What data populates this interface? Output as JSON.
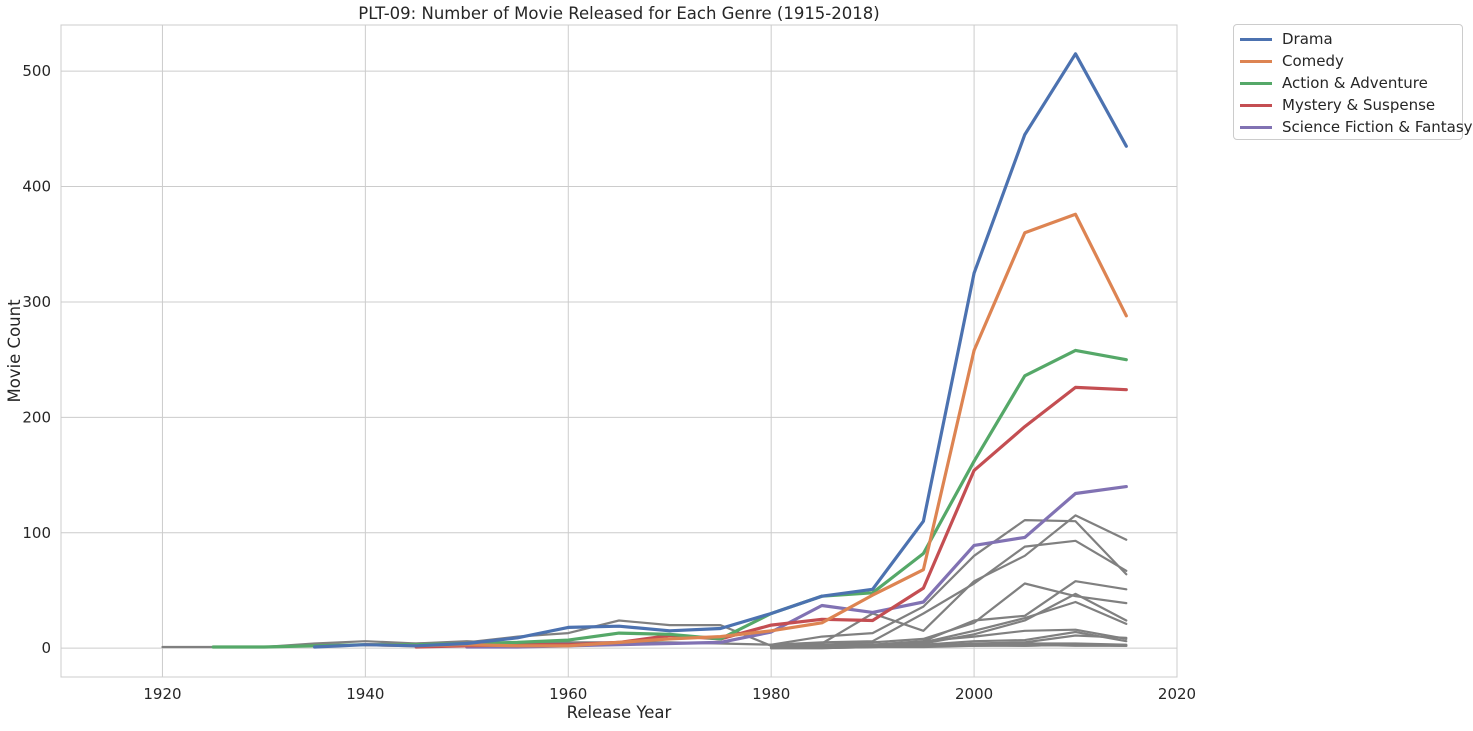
{
  "chart_data": {
    "type": "line",
    "title": "PLT-09: Number of Movie Released for Each Genre (1915-2018)",
    "xlabel": "Release Year",
    "ylabel": "Movie Count",
    "xlim": [
      1910,
      2020
    ],
    "ylim": [
      -25,
      540
    ],
    "xticks": [
      1920,
      1940,
      1960,
      1980,
      2000,
      2020
    ],
    "yticks": [
      0,
      100,
      200,
      300,
      400,
      500
    ],
    "grid": true,
    "legend_position": "outside-top-right",
    "x": [
      1920,
      1925,
      1930,
      1935,
      1940,
      1945,
      1950,
      1955,
      1960,
      1965,
      1970,
      1975,
      1980,
      1985,
      1990,
      1995,
      2000,
      2005,
      2010,
      2015
    ],
    "series": [
      {
        "name": "Drama",
        "color": "#4c72b0",
        "x": [
          1935,
          1940,
          1945,
          1950,
          1955,
          1960,
          1965,
          1970,
          1975,
          1980,
          1985,
          1990,
          1995,
          2000,
          2005,
          2010,
          2015
        ],
        "values": [
          1,
          3,
          2,
          4,
          9,
          18,
          19,
          15,
          17,
          30,
          45,
          51,
          110,
          325,
          445,
          515,
          435
        ]
      },
      {
        "name": "Comedy",
        "color": "#dd8452",
        "x": [
          1940,
          1945,
          1950,
          1955,
          1960,
          1965,
          1970,
          1975,
          1980,
          1985,
          1990,
          1995,
          2000,
          2005,
          2010,
          2015
        ],
        "values": [
          3,
          2,
          3,
          2,
          2,
          5,
          8,
          10,
          15,
          22,
          46,
          68,
          258,
          360,
          376,
          288
        ]
      },
      {
        "name": "Action & Adventure",
        "color": "#55a868",
        "x": [
          1925,
          1930,
          1935,
          1940,
          1945,
          1950,
          1955,
          1960,
          1965,
          1970,
          1975,
          1980,
          1985,
          1990,
          1995,
          2000,
          2005,
          2010,
          2015
        ],
        "values": [
          1,
          1,
          2,
          3,
          3,
          4,
          5,
          7,
          13,
          12,
          8,
          30,
          45,
          48,
          82,
          162,
          236,
          258,
          250
        ]
      },
      {
        "name": "Mystery & Suspense",
        "color": "#c44e52",
        "x": [
          1945,
          1950,
          1955,
          1960,
          1965,
          1970,
          1975,
          1980,
          1985,
          1990,
          1995,
          2000,
          2005,
          2010,
          2015
        ],
        "values": [
          1,
          2,
          3,
          3,
          5,
          11,
          8,
          20,
          25,
          24,
          52,
          154,
          192,
          226,
          224
        ]
      },
      {
        "name": "Science Fiction & Fantasy",
        "color": "#8172b3",
        "x": [
          1950,
          1955,
          1960,
          1965,
          1970,
          1975,
          1980,
          1985,
          1990,
          1995,
          2000,
          2005,
          2010,
          2015
        ],
        "values": [
          1,
          1,
          2,
          3,
          4,
          5,
          14,
          37,
          31,
          40,
          89,
          96,
          134,
          140
        ]
      }
    ],
    "other_series": [
      {
        "color": "#808080",
        "x": [
          1920,
          1925,
          1930,
          1935,
          1940,
          1945,
          1950,
          1955,
          1960,
          1965,
          1970,
          1975,
          1980,
          1985,
          1990,
          1995,
          2000,
          2005,
          2010,
          2015
        ],
        "values": [
          1,
          1,
          1,
          4,
          6,
          4,
          5,
          10,
          13,
          24,
          20,
          20,
          2,
          3,
          2,
          2,
          3,
          2,
          3,
          2
        ]
      },
      {
        "color": "#808080",
        "x": [
          1930,
          1935,
          1940,
          1945,
          1950,
          1955,
          1960,
          1965,
          1970,
          1975,
          1980,
          1985,
          1990,
          1995,
          2000,
          2005,
          2010,
          2015
        ],
        "values": [
          1,
          3,
          3,
          4,
          6,
          4,
          5,
          5,
          5,
          4,
          3,
          3,
          3,
          2,
          2,
          3,
          2,
          2
        ]
      },
      {
        "color": "#808080",
        "x": [
          1980,
          1985,
          1990,
          1995,
          2000,
          2005,
          2010,
          2015
        ],
        "values": [
          3,
          10,
          13,
          36,
          80,
          111,
          110,
          64
        ]
      },
      {
        "color": "#808080",
        "x": [
          1980,
          1985,
          1990,
          1995,
          2000,
          2005,
          2010,
          2015
        ],
        "values": [
          3,
          5,
          6,
          30,
          56,
          88,
          93,
          67
        ]
      },
      {
        "color": "#808080",
        "x": [
          1980,
          1985,
          1990,
          1995,
          2000,
          2005,
          2010,
          2015
        ],
        "values": [
          2,
          4,
          30,
          15,
          58,
          80,
          115,
          94
        ]
      },
      {
        "color": "#808080",
        "x": [
          1980,
          1985,
          1990,
          1995,
          2000,
          2005,
          2010,
          2015
        ],
        "values": [
          2,
          3,
          5,
          8,
          22,
          56,
          45,
          39
        ]
      },
      {
        "color": "#808080",
        "x": [
          1980,
          1985,
          1990,
          1995,
          2000,
          2005,
          2010,
          2015
        ],
        "values": [
          1,
          2,
          3,
          6,
          24,
          28,
          58,
          51
        ]
      },
      {
        "color": "#808080",
        "x": [
          1980,
          1985,
          1990,
          1995,
          2000,
          2005,
          2010,
          2015
        ],
        "values": [
          1,
          2,
          2,
          4,
          12,
          24,
          47,
          24
        ]
      },
      {
        "color": "#808080",
        "x": [
          1980,
          1985,
          1990,
          1995,
          2000,
          2005,
          2010,
          2015
        ],
        "values": [
          1,
          2,
          2,
          5,
          15,
          26,
          40,
          21
        ]
      },
      {
        "color": "#808080",
        "x": [
          1980,
          1985,
          1990,
          1995,
          2000,
          2005,
          2010,
          2015
        ],
        "values": [
          1,
          1,
          3,
          6,
          10,
          15,
          16,
          8
        ]
      },
      {
        "color": "#808080",
        "x": [
          1980,
          1985,
          1990,
          1995,
          2000,
          2005,
          2010,
          2015
        ],
        "values": [
          1,
          1,
          2,
          3,
          6,
          7,
          14,
          6
        ]
      },
      {
        "color": "#808080",
        "x": [
          1980,
          1985,
          1990,
          1995,
          2000,
          2005,
          2010,
          2015
        ],
        "values": [
          0,
          1,
          1,
          2,
          4,
          5,
          11,
          9
        ]
      },
      {
        "color": "#808080",
        "x": [
          1980,
          1985,
          1990,
          1995,
          2000,
          2005,
          2010,
          2015
        ],
        "values": [
          0,
          0,
          1,
          2,
          3,
          4,
          4,
          3
        ]
      },
      {
        "color": "#808080",
        "x": [
          1980,
          1985,
          1990,
          1995,
          2000,
          2005,
          2010,
          2015
        ],
        "values": [
          0,
          0,
          1,
          1,
          2,
          2,
          3,
          2
        ]
      }
    ]
  }
}
